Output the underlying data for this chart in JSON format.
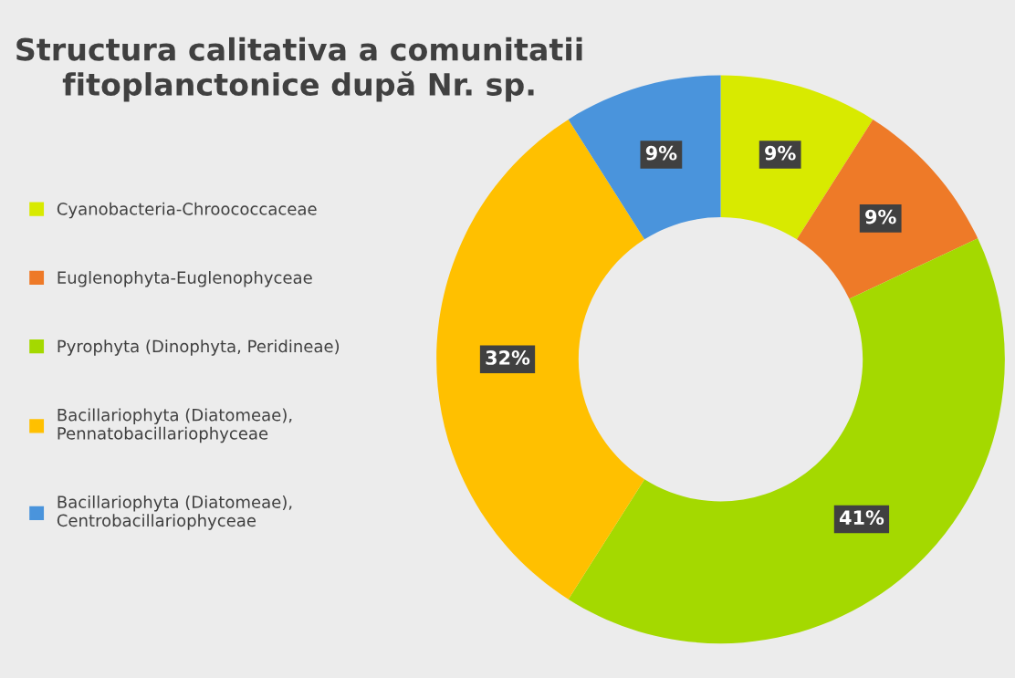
{
  "chart_data": {
    "type": "donut",
    "title": "Structura calitativa a comunitatii\nfitoplanctonice după Nr. sp.",
    "categories": [
      "Cyanobacteria-Chroococcaceae",
      "Euglenophyta-Euglenophyceae",
      "Pyrophyta (Dinophyta, Peridineae)",
      "Bacillariophyta (Diatomeae),\nPennatobacillariophyceae",
      "Bacillariophyta (Diatomeae),\nCentrobacillariophyceae"
    ],
    "values": [
      9,
      9,
      41,
      32,
      9
    ],
    "colors": [
      "#d8ea00",
      "#ee7a28",
      "#a4d900",
      "#ffc000",
      "#4a94dc"
    ],
    "value_labels": [
      "9%",
      "9%",
      "41%",
      "32%",
      "9%"
    ],
    "legend": "left"
  }
}
